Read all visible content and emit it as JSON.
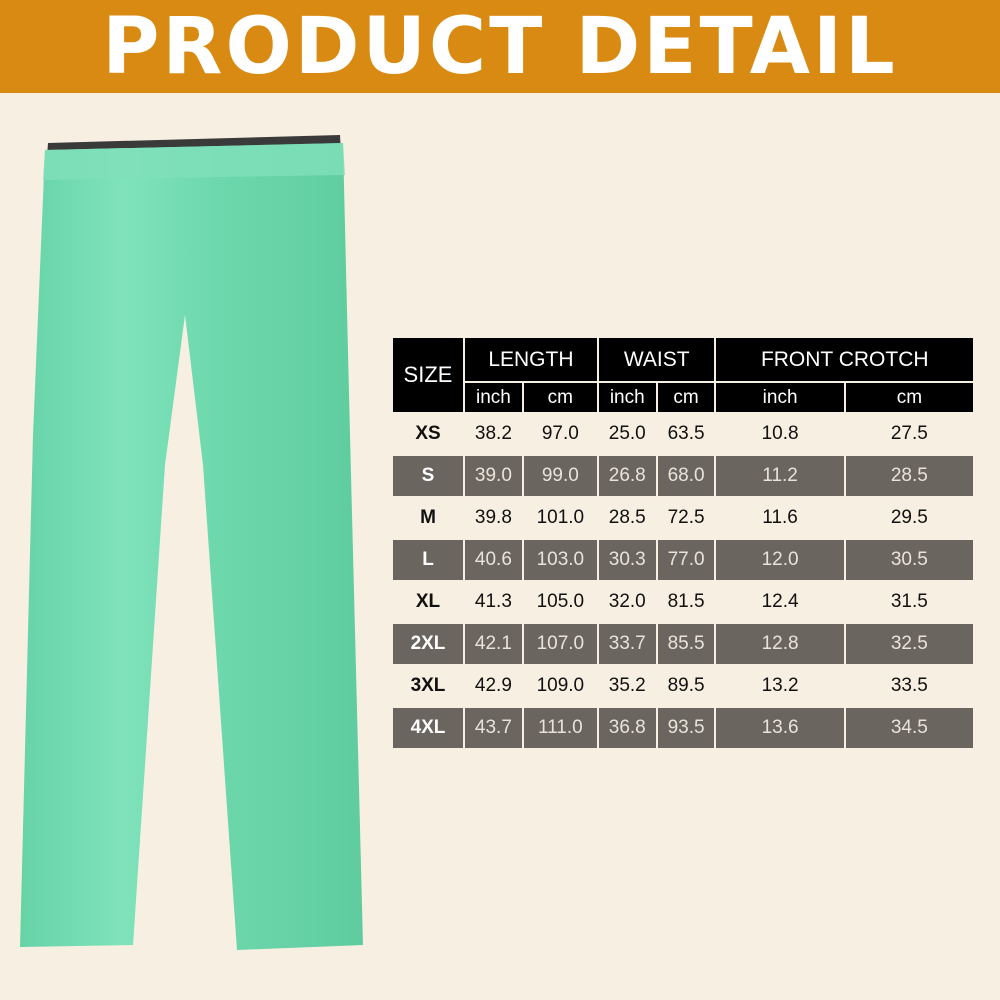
{
  "banner": {
    "title": "PRODUCT DETAIL",
    "color": "#d98a12"
  },
  "product": {
    "color": "#6fd9ae",
    "waistband_color": "#333333"
  },
  "size_chart": {
    "size_header": "SIZE",
    "groups": [
      "LENGTH",
      "WAIST",
      "FRONT CROTCH"
    ],
    "units": [
      "inch",
      "cm",
      "inch",
      "cm",
      "inch",
      "cm"
    ],
    "rows": [
      {
        "size": "XS",
        "values": [
          "38.2",
          "97.0",
          "25.0",
          "63.5",
          "10.8",
          "27.5"
        ]
      },
      {
        "size": "S",
        "values": [
          "39.0",
          "99.0",
          "26.8",
          "68.0",
          "11.2",
          "28.5"
        ]
      },
      {
        "size": "M",
        "values": [
          "39.8",
          "101.0",
          "28.5",
          "72.5",
          "11.6",
          "29.5"
        ]
      },
      {
        "size": "L",
        "values": [
          "40.6",
          "103.0",
          "30.3",
          "77.0",
          "12.0",
          "30.5"
        ]
      },
      {
        "size": "XL",
        "values": [
          "41.3",
          "105.0",
          "32.0",
          "81.5",
          "12.4",
          "31.5"
        ]
      },
      {
        "size": "2XL",
        "values": [
          "42.1",
          "107.0",
          "33.7",
          "85.5",
          "12.8",
          "32.5"
        ]
      },
      {
        "size": "3XL",
        "values": [
          "42.9",
          "109.0",
          "35.2",
          "89.5",
          "13.2",
          "33.5"
        ]
      },
      {
        "size": "4XL",
        "values": [
          "43.7",
          "111.0",
          "36.8",
          "93.5",
          "13.6",
          "34.5"
        ]
      }
    ]
  }
}
